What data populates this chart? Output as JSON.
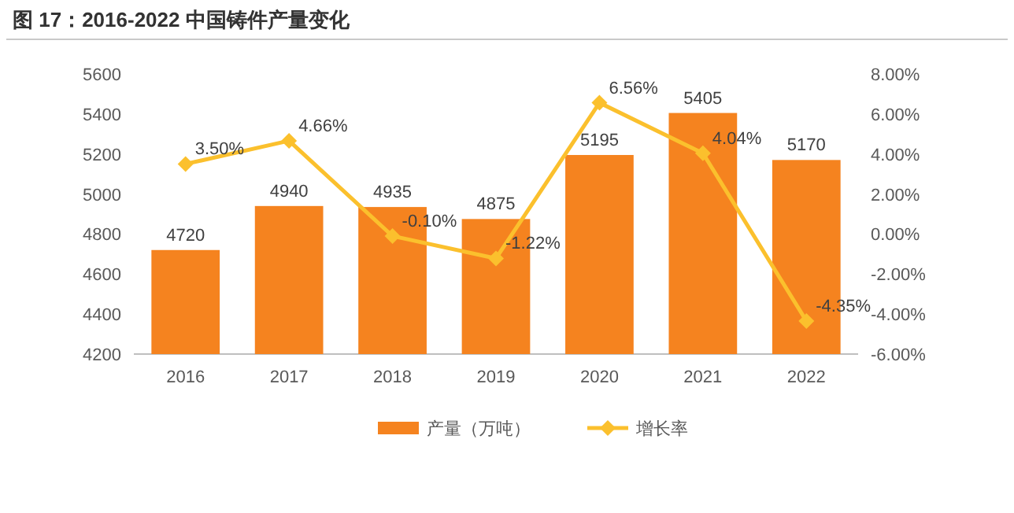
{
  "chart_data": {
    "type": "bar",
    "title": "图 17：2016-2022 中国铸件产量变化",
    "categories": [
      "2016",
      "2017",
      "2018",
      "2019",
      "2020",
      "2021",
      "2022"
    ],
    "series": [
      {
        "name": "产量（万吨）",
        "color": "#f5831f",
        "values": [
          4720,
          4940,
          4935,
          4875,
          5195,
          5405,
          5170
        ]
      },
      {
        "name": "增长率",
        "type": "line",
        "axis": "y2",
        "color": "#fbc02d",
        "marker": "diamond",
        "values": [
          3.5,
          4.66,
          -0.1,
          -1.22,
          6.56,
          4.04,
          -4.35
        ],
        "value_labels": [
          "3.50%",
          "4.66%",
          "-0.10%",
          "-1.22%",
          "6.56%",
          "4.04%",
          "-4.35%"
        ]
      }
    ],
    "data_labels": true,
    "ylim": [
      4200,
      5600
    ],
    "yticks": [
      4200,
      4400,
      4600,
      4800,
      5000,
      5200,
      5400,
      5600
    ],
    "y2lim": [
      -6,
      8
    ],
    "y2ticks": [
      {
        "value": -6,
        "label": "-6.00%"
      },
      {
        "value": -4,
        "label": "-4.00%"
      },
      {
        "value": -2,
        "label": "-2.00%"
      },
      {
        "value": 0,
        "label": "0.00%"
      },
      {
        "value": 2,
        "label": "2.00%"
      },
      {
        "value": 4,
        "label": "4.00%"
      },
      {
        "value": 6,
        "label": "6.00%"
      },
      {
        "value": 8,
        "label": "8.00%"
      }
    ],
    "legend": "bottom"
  }
}
